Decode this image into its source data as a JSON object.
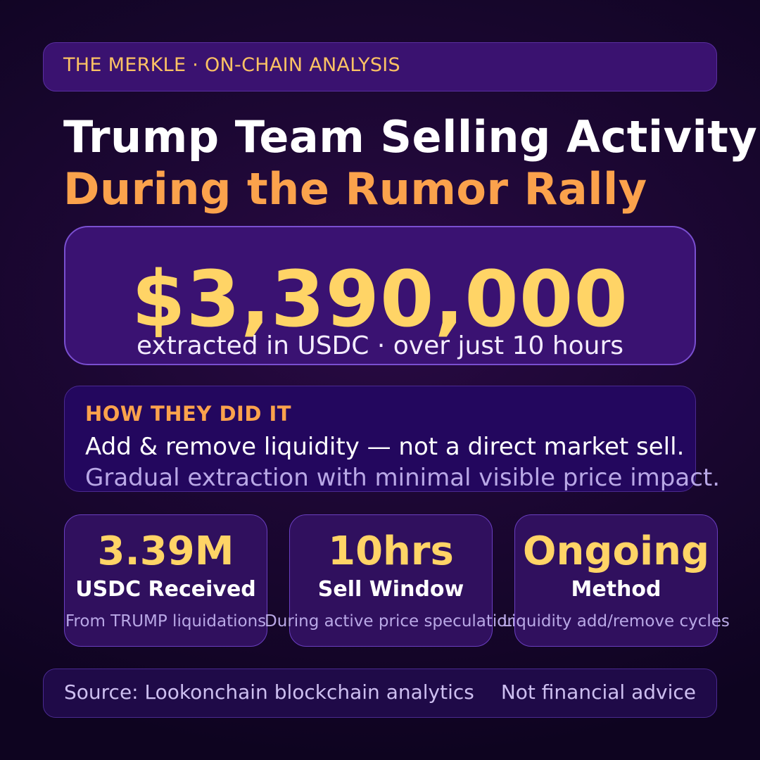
{
  "header": {
    "text": "THE MERKLE  ·  ON-CHAIN ANALYSIS"
  },
  "title": {
    "line1": "Trump Team Selling Activity",
    "line2": "During the Rumor Rally"
  },
  "hero": {
    "amount": "$3,390,000",
    "subtitle": "extracted in USDC  ·  over just 10 hours"
  },
  "how": {
    "heading": "HOW THEY DID IT",
    "line1": "Add & remove liquidity — not a direct market sell.",
    "line2": "Gradual extraction with minimal visible price impact."
  },
  "stats": [
    {
      "value": "3.39M",
      "label": "USDC Received",
      "desc": "From TRUMP liquidations"
    },
    {
      "value": "10hrs",
      "label": "Sell Window",
      "desc": "During active price speculation"
    },
    {
      "value": "Ongoing",
      "label": "Method",
      "desc": "Liquidity add/remove cycles"
    }
  ],
  "footer": {
    "source": "Source: Lookonchain blockchain analytics",
    "disclaimer": "Not financial advice"
  },
  "colors": {
    "accent_gold": "#ffd466",
    "accent_orange": "#fba24c",
    "muted_lavender": "#b9a8e6",
    "card_purple": "#3a1272"
  }
}
